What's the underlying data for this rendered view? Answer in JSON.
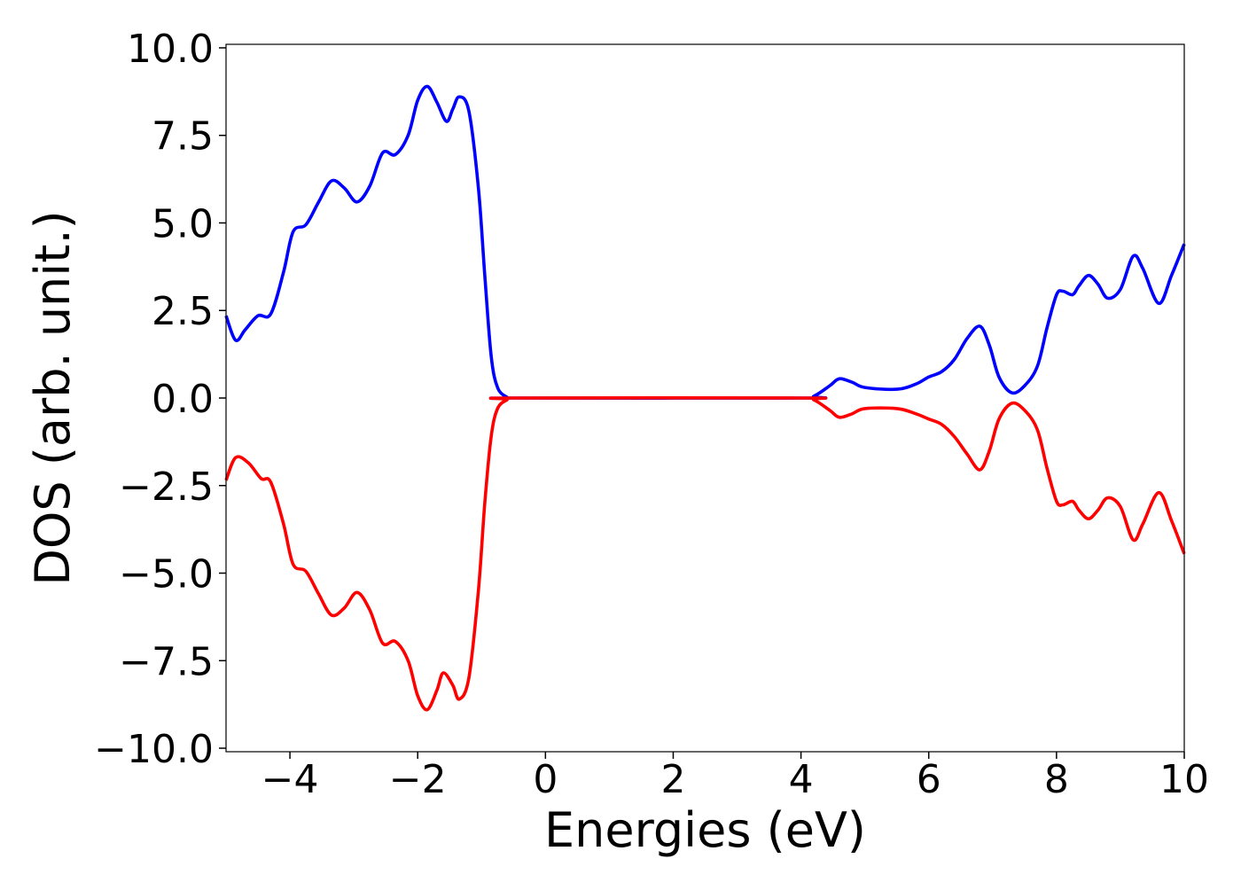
{
  "chart_data": {
    "type": "line",
    "title": "",
    "xlabel": "Energies (eV)",
    "ylabel": "DOS (arb. unit.)",
    "xlim": [
      -5,
      10
    ],
    "ylim": [
      -10.1,
      10.1
    ],
    "x_ticks": [
      -4,
      -2,
      0,
      2,
      4,
      6,
      8,
      10
    ],
    "x_tick_labels": [
      "−4",
      "−2",
      "0",
      "2",
      "4",
      "6",
      "8",
      "10"
    ],
    "y_ticks": [
      10,
      7.5,
      5,
      2.5,
      0,
      -2.5,
      -5,
      -7.5,
      -10
    ],
    "y_tick_labels": [
      "10.0",
      "7.5",
      "5.0",
      "2.5",
      "0.0",
      "−2.5",
      "−5.0",
      "−7.5",
      "−10.0"
    ],
    "grid": false,
    "legend": "none",
    "series": [
      {
        "color": "#0000ff",
        "points": [
          [
            -5.0,
            2.35
          ],
          [
            -4.85,
            1.65
          ],
          [
            -4.7,
            1.95
          ],
          [
            -4.5,
            2.35
          ],
          [
            -4.3,
            2.4
          ],
          [
            -4.1,
            3.6
          ],
          [
            -3.95,
            4.75
          ],
          [
            -3.75,
            4.95
          ],
          [
            -3.55,
            5.6
          ],
          [
            -3.35,
            6.2
          ],
          [
            -3.15,
            6.0
          ],
          [
            -2.95,
            5.6
          ],
          [
            -2.75,
            6.05
          ],
          [
            -2.55,
            7.0
          ],
          [
            -2.35,
            6.95
          ],
          [
            -2.15,
            7.5
          ],
          [
            -2.0,
            8.5
          ],
          [
            -1.85,
            8.9
          ],
          [
            -1.7,
            8.45
          ],
          [
            -1.55,
            7.9
          ],
          [
            -1.45,
            8.25
          ],
          [
            -1.35,
            8.6
          ],
          [
            -1.2,
            8.2
          ],
          [
            -1.05,
            6.0
          ],
          [
            -0.95,
            3.5
          ],
          [
            -0.85,
            1.2
          ],
          [
            -0.75,
            0.3
          ],
          [
            -0.6,
            0.02
          ],
          [
            -0.5,
            0.0
          ],
          [
            4.0,
            0.0
          ],
          [
            4.2,
            0.05
          ],
          [
            4.45,
            0.35
          ],
          [
            4.6,
            0.55
          ],
          [
            4.8,
            0.45
          ],
          [
            5.0,
            0.3
          ],
          [
            5.5,
            0.25
          ],
          [
            5.8,
            0.4
          ],
          [
            6.0,
            0.6
          ],
          [
            6.2,
            0.75
          ],
          [
            6.4,
            1.1
          ],
          [
            6.6,
            1.7
          ],
          [
            6.8,
            2.05
          ],
          [
            6.95,
            1.5
          ],
          [
            7.1,
            0.6
          ],
          [
            7.3,
            0.15
          ],
          [
            7.5,
            0.35
          ],
          [
            7.7,
            0.9
          ],
          [
            7.85,
            2.0
          ],
          [
            8.0,
            2.95
          ],
          [
            8.1,
            3.05
          ],
          [
            8.25,
            2.95
          ],
          [
            8.35,
            3.2
          ],
          [
            8.5,
            3.5
          ],
          [
            8.65,
            3.25
          ],
          [
            8.8,
            2.85
          ],
          [
            9.0,
            3.1
          ],
          [
            9.2,
            4.05
          ],
          [
            9.35,
            3.7
          ],
          [
            9.6,
            2.7
          ],
          [
            9.8,
            3.5
          ],
          [
            10.0,
            4.4
          ]
        ]
      },
      {
        "color": "#ff0000",
        "points": [
          [
            -5.0,
            -2.35
          ],
          [
            -4.85,
            -1.7
          ],
          [
            -4.65,
            -1.85
          ],
          [
            -4.45,
            -2.3
          ],
          [
            -4.3,
            -2.4
          ],
          [
            -4.1,
            -3.6
          ],
          [
            -3.95,
            -4.75
          ],
          [
            -3.75,
            -4.95
          ],
          [
            -3.55,
            -5.6
          ],
          [
            -3.35,
            -6.2
          ],
          [
            -3.15,
            -6.0
          ],
          [
            -2.95,
            -5.55
          ],
          [
            -2.75,
            -6.05
          ],
          [
            -2.55,
            -7.0
          ],
          [
            -2.35,
            -6.95
          ],
          [
            -2.15,
            -7.5
          ],
          [
            -2.0,
            -8.5
          ],
          [
            -1.85,
            -8.9
          ],
          [
            -1.7,
            -8.35
          ],
          [
            -1.6,
            -7.85
          ],
          [
            -1.45,
            -8.2
          ],
          [
            -1.35,
            -8.6
          ],
          [
            -1.2,
            -8.0
          ],
          [
            -1.05,
            -5.5
          ],
          [
            -0.95,
            -3.0
          ],
          [
            -0.85,
            -1.1
          ],
          [
            -0.75,
            -0.3
          ],
          [
            -0.6,
            -0.05
          ],
          [
            -0.5,
            0.0
          ],
          [
            4.0,
            0.0
          ],
          [
            4.2,
            -0.05
          ],
          [
            4.45,
            -0.35
          ],
          [
            4.6,
            -0.55
          ],
          [
            4.8,
            -0.45
          ],
          [
            5.0,
            -0.3
          ],
          [
            5.5,
            -0.3
          ],
          [
            5.8,
            -0.45
          ],
          [
            6.0,
            -0.6
          ],
          [
            6.2,
            -0.75
          ],
          [
            6.4,
            -1.1
          ],
          [
            6.6,
            -1.6
          ],
          [
            6.8,
            -2.05
          ],
          [
            6.95,
            -1.5
          ],
          [
            7.1,
            -0.6
          ],
          [
            7.3,
            -0.15
          ],
          [
            7.5,
            -0.35
          ],
          [
            7.7,
            -0.9
          ],
          [
            7.85,
            -2.0
          ],
          [
            8.0,
            -2.95
          ],
          [
            8.1,
            -3.05
          ],
          [
            8.25,
            -2.95
          ],
          [
            8.35,
            -3.2
          ],
          [
            8.5,
            -3.45
          ],
          [
            8.65,
            -3.2
          ],
          [
            8.8,
            -2.85
          ],
          [
            9.0,
            -3.1
          ],
          [
            9.2,
            -4.05
          ],
          [
            9.35,
            -3.6
          ],
          [
            9.6,
            -2.7
          ],
          [
            9.8,
            -3.5
          ],
          [
            10.0,
            -4.45
          ]
        ]
      }
    ]
  }
}
